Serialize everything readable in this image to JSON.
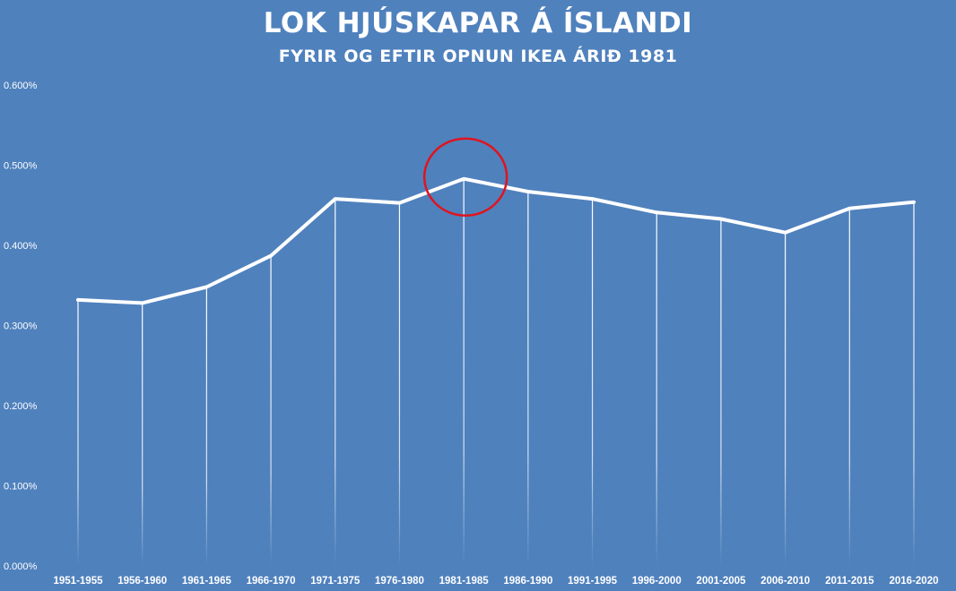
{
  "header": {
    "title": "LOK HJÚSKAPAR Á ÍSLANDI",
    "subtitle": "FYRIR OG EFTIR OPNUN IKEA ÁRIÐ 1981"
  },
  "colors": {
    "background": "#4f81bd",
    "line": "#ffffff",
    "highlight_circle": "#e0141e"
  },
  "chart_data": {
    "type": "line",
    "title": "LOK HJÚSKAPAR Á ÍSLANDI",
    "subtitle": "FYRIR OG EFTIR OPNUN IKEA ÁRIÐ 1981",
    "xlabel": "",
    "ylabel": "",
    "categories": [
      "1951-1955",
      "1956-1960",
      "1961-1965",
      "1966-1970",
      "1971-1975",
      "1976-1980",
      "1981-1985",
      "1986-1990",
      "1991-1995",
      "1996-2000",
      "2001-2005",
      "2006-2010",
      "2011-2015",
      "2016-2020"
    ],
    "values": [
      0.332,
      0.328,
      0.348,
      0.387,
      0.458,
      0.453,
      0.483,
      0.467,
      0.458,
      0.441,
      0.433,
      0.416,
      0.446,
      0.454
    ],
    "ylim": [
      0,
      0.6
    ],
    "yticks": [
      0,
      0.1,
      0.2,
      0.3,
      0.4,
      0.5,
      0.6
    ],
    "ytick_labels": [
      "0.000%",
      "0.100%",
      "0.200%",
      "0.300%",
      "0.400%",
      "0.500%",
      "0.600%"
    ],
    "drop_lines": true,
    "grid": false,
    "legend": "none",
    "highlight_category": "1981-1985"
  }
}
